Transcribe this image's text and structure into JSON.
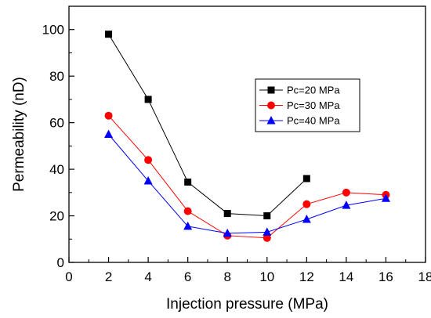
{
  "chart_data": {
    "type": "line",
    "title": "",
    "xlabel": "Injection pressure (MPa)",
    "ylabel": "Permeability (nD)",
    "xlim": [
      0,
      18
    ],
    "ylim": [
      0,
      110
    ],
    "x_ticks": [
      0,
      2,
      4,
      6,
      8,
      10,
      12,
      14,
      16,
      18
    ],
    "y_ticks": [
      0,
      20,
      40,
      60,
      80,
      100
    ],
    "grid": false,
    "legend_position": "right-middle",
    "series": [
      {
        "name": "Pc=20 MPa",
        "color": "#000000",
        "marker": "square",
        "x": [
          2,
          4,
          6,
          8,
          10,
          12
        ],
        "values": [
          98,
          70,
          34.5,
          21,
          20,
          36
        ]
      },
      {
        "name": "Pc=30 MPa",
        "color": "#ff0000",
        "marker": "circle",
        "x": [
          2,
          4,
          6,
          8,
          10,
          12,
          14,
          16
        ],
        "values": [
          63,
          44,
          22,
          11.5,
          10.5,
          25,
          30,
          29
        ]
      },
      {
        "name": "Pc=40 MPa",
        "color": "#0000ff",
        "marker": "triangle",
        "x": [
          2,
          4,
          6,
          8,
          10,
          12,
          14,
          16
        ],
        "values": [
          55,
          35,
          15.5,
          12.5,
          13,
          18.5,
          24.5,
          27.5
        ]
      }
    ]
  }
}
